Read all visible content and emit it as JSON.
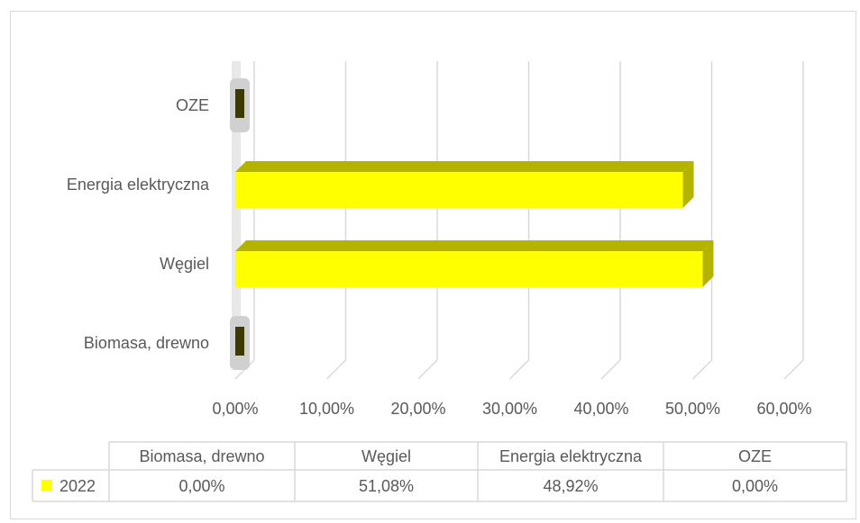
{
  "chart_data": {
    "type": "bar",
    "orientation": "horizontal",
    "style": "3d",
    "categories": [
      "Biomasa, drewno",
      "Węgiel",
      "Energia elektryczna",
      "OZE"
    ],
    "series": [
      {
        "name": "2022",
        "values": [
          0.0,
          51.08,
          48.92,
          0.0
        ],
        "color": "#ffff00",
        "side_color": "#b3b300"
      }
    ],
    "x_ticks": [
      "0,00%",
      "10,00%",
      "20,00%",
      "30,00%",
      "40,00%",
      "50,00%",
      "60,00%"
    ],
    "xlim": [
      0,
      60
    ],
    "grid": true,
    "legend": "data-table",
    "data_table": {
      "headers": [
        "Biomasa, drewno",
        "Węgiel",
        "Energia elektryczna",
        "OZE"
      ],
      "row_label": "2022",
      "values": [
        "0,00%",
        "51,08%",
        "48,92%",
        "0,00%"
      ]
    }
  }
}
